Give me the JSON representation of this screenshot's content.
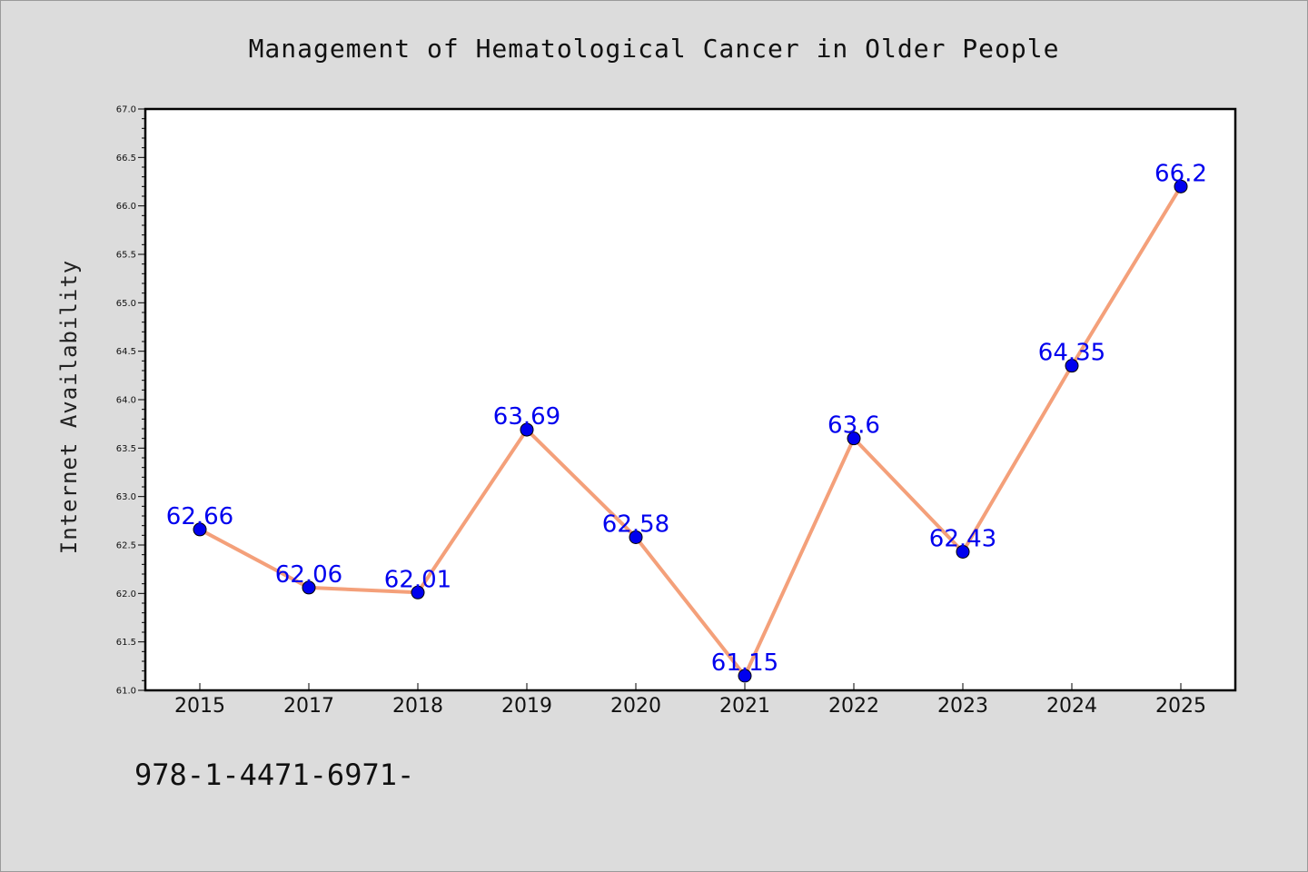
{
  "chart_data": {
    "type": "line",
    "title": "Management of Hematological Cancer in Older People",
    "xlabel": "",
    "ylabel": "Internet Availability",
    "categories": [
      "2015",
      "2017",
      "2018",
      "2019",
      "2020",
      "2021",
      "2022",
      "2023",
      "2024",
      "2025"
    ],
    "values": [
      62.66,
      62.06,
      62.01,
      63.69,
      62.58,
      61.15,
      63.6,
      62.43,
      64.35,
      66.2
    ],
    "data_labels": [
      "62.66",
      "62.06",
      "62.01",
      "63.69",
      "62.58",
      "61.15",
      "63.6",
      "62.43",
      "64.35",
      "66.2"
    ],
    "ylim": [
      61.0,
      67.0
    ],
    "yticks": [
      "61.0",
      "61.5",
      "62.0",
      "62.5",
      "63.0",
      "63.5",
      "64.0",
      "64.5",
      "65.0",
      "65.5",
      "66.0",
      "66.5",
      "67.0"
    ],
    "grid": false,
    "legend": "none",
    "line_color": "#f4a07a",
    "marker_color": "#0000ee",
    "label_color": "#0000ee"
  },
  "footer": {
    "text": "978-1-4471-6971-"
  }
}
